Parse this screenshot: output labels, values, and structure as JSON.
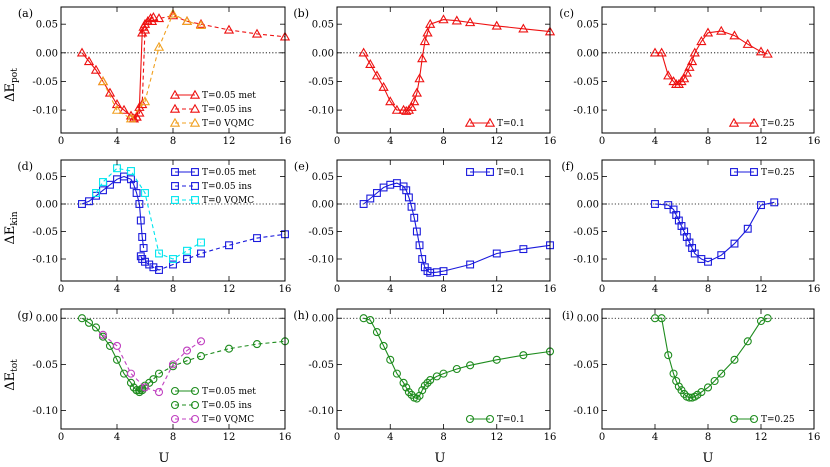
{
  "figure": {
    "xlabel": "U",
    "row_ylabels": [
      {
        "main": "ΔE",
        "sub": "pot"
      },
      {
        "main": "ΔE",
        "sub": "kin"
      },
      {
        "main": "ΔE",
        "sub": "tot"
      }
    ],
    "colors": {
      "red": "#ee1111",
      "orange": "#f0a020",
      "blue": "#1a1adc",
      "cyan": "#00e5ee",
      "green": "#1e8c1e",
      "magenta": "#c040c0"
    }
  },
  "chart_data": [
    {
      "type": "line",
      "label": "(a)",
      "quantity": "pot",
      "xlim": [
        0,
        16
      ],
      "ylim": [
        -0.14,
        0.08
      ],
      "xticks": [
        {
          "v": 0,
          "t": "0"
        },
        {
          "v": 4,
          "t": "4"
        },
        {
          "v": 8,
          "t": "8"
        },
        {
          "v": 12,
          "t": "12"
        },
        {
          "v": 16,
          "t": "16"
        }
      ],
      "yticks": [
        {
          "v": 0.05,
          "t": "0.05"
        },
        {
          "v": 0,
          "t": "0.00"
        },
        {
          "v": -0.05,
          "t": "-0.05"
        },
        {
          "v": -0.1,
          "t": "-0.10"
        }
      ],
      "legend_position": "bottom-right",
      "series": [
        {
          "name": "T=0.05 met",
          "color": "#ee1111",
          "marker": "triangle",
          "dash": false,
          "x": [
            1.5,
            2,
            2.5,
            3,
            3.5,
            4,
            4.5,
            5,
            5.2,
            5.4,
            5.6,
            5.8,
            5.9,
            6,
            6.2,
            6.4,
            6.6
          ],
          "y": [
            0,
            -0.015,
            -0.03,
            -0.05,
            -0.07,
            -0.09,
            -0.1,
            -0.11,
            -0.115,
            -0.112,
            -0.095,
            0.035,
            0.045,
            0.05,
            0.055,
            0.06,
            0.062
          ]
        },
        {
          "name": "T=0.05 ins",
          "color": "#ee1111",
          "marker": "triangle",
          "dash": true,
          "x": [
            5.2,
            5.4,
            5.6,
            5.8,
            6,
            6.5,
            7,
            8,
            9,
            10,
            12,
            14,
            16
          ],
          "y": [
            -0.115,
            -0.112,
            -0.105,
            -0.09,
            0.04,
            0.055,
            0.06,
            0.065,
            0.055,
            0.05,
            0.04,
            0.033,
            0.028
          ]
        },
        {
          "name": "T=0 VQMC",
          "color": "#f0a020",
          "marker": "triangle",
          "dash": true,
          "x": [
            3,
            4,
            5,
            6,
            7,
            8,
            9,
            10
          ],
          "y": [
            -0.05,
            -0.1,
            -0.115,
            -0.085,
            0.01,
            0.068,
            0.055,
            0.048
          ]
        }
      ]
    },
    {
      "type": "line",
      "label": "(b)",
      "quantity": "pot",
      "xlim": [
        0,
        16
      ],
      "ylim": [
        -0.14,
        0.08
      ],
      "xticks": [
        {
          "v": 0,
          "t": "0"
        },
        {
          "v": 4,
          "t": "4"
        },
        {
          "v": 8,
          "t": "8"
        },
        {
          "v": 12,
          "t": "12"
        },
        {
          "v": 16,
          "t": "16"
        }
      ],
      "yticks": [
        {
          "v": 0.05,
          "t": "0.05"
        },
        {
          "v": 0,
          "t": "0.00"
        },
        {
          "v": -0.05,
          "t": "-0.05"
        },
        {
          "v": -0.1,
          "t": "-0.10"
        }
      ],
      "legend_position": "bottom-right",
      "series": [
        {
          "name": "T=0.1",
          "color": "#ee1111",
          "marker": "triangle",
          "dash": false,
          "x": [
            2,
            2.5,
            3,
            3.5,
            4,
            4.5,
            5,
            5.2,
            5.4,
            5.6,
            5.8,
            6,
            6.2,
            6.4,
            6.6,
            6.8,
            7,
            8,
            9,
            10,
            12,
            14,
            16
          ],
          "y": [
            0,
            -0.02,
            -0.04,
            -0.06,
            -0.085,
            -0.1,
            -0.1,
            -0.102,
            -0.1,
            -0.095,
            -0.085,
            -0.07,
            -0.045,
            -0.01,
            0.02,
            0.035,
            0.05,
            0.058,
            0.056,
            0.053,
            0.047,
            0.042,
            0.037
          ]
        }
      ]
    },
    {
      "type": "line",
      "label": "(c)",
      "quantity": "pot",
      "xlim": [
        0,
        16
      ],
      "ylim": [
        -0.14,
        0.08
      ],
      "xticks": [
        {
          "v": 0,
          "t": "0"
        },
        {
          "v": 4,
          "t": "4"
        },
        {
          "v": 8,
          "t": "8"
        },
        {
          "v": 12,
          "t": "12"
        },
        {
          "v": 16,
          "t": "16"
        }
      ],
      "yticks": [
        {
          "v": 0.05,
          "t": "0.05"
        },
        {
          "v": 0,
          "t": "0.00"
        },
        {
          "v": -0.05,
          "t": "-0.05"
        },
        {
          "v": -0.1,
          "t": "-0.10"
        }
      ],
      "legend_position": "bottom-right",
      "series": [
        {
          "name": "T=0.25",
          "color": "#ee1111",
          "marker": "triangle",
          "dash": false,
          "x": [
            4,
            4.5,
            5,
            5.4,
            5.6,
            5.8,
            6,
            6.2,
            6.4,
            6.6,
            6.8,
            7,
            7.5,
            8,
            9,
            10,
            11,
            12,
            12.5
          ],
          "y": [
            0,
            0,
            -0.04,
            -0.05,
            -0.055,
            -0.055,
            -0.05,
            -0.045,
            -0.035,
            -0.025,
            -0.015,
            0,
            0.02,
            0.035,
            0.038,
            0.03,
            0.015,
            0.002,
            -0.002
          ]
        }
      ]
    },
    {
      "type": "line",
      "label": "(d)",
      "quantity": "kin",
      "xlim": [
        0,
        16
      ],
      "ylim": [
        -0.14,
        0.08
      ],
      "xticks": [
        {
          "v": 0,
          "t": "0"
        },
        {
          "v": 4,
          "t": "4"
        },
        {
          "v": 8,
          "t": "8"
        },
        {
          "v": 12,
          "t": "12"
        },
        {
          "v": 16,
          "t": "16"
        }
      ],
      "yticks": [
        {
          "v": 0.05,
          "t": "0.05"
        },
        {
          "v": 0,
          "t": "0.00"
        },
        {
          "v": -0.05,
          "t": "-0.05"
        },
        {
          "v": -0.1,
          "t": "-0.10"
        }
      ],
      "legend_position": "top-right",
      "series": [
        {
          "name": "T=0.05 met",
          "color": "#1a1adc",
          "marker": "square",
          "dash": false,
          "x": [
            1.5,
            2,
            2.5,
            3,
            3.5,
            4,
            4.5,
            5,
            5.2,
            5.4,
            5.6,
            5.7,
            5.8,
            5.9
          ],
          "y": [
            0,
            0.005,
            0.015,
            0.025,
            0.035,
            0.045,
            0.05,
            0.045,
            0.035,
            0.02,
            0,
            -0.03,
            -0.06,
            -0.08
          ]
        },
        {
          "name": "T=0.05 ins",
          "color": "#1a1adc",
          "marker": "square",
          "dash": true,
          "x": [
            5.7,
            5.8,
            6,
            6.3,
            6.6,
            7,
            8,
            9,
            10,
            12,
            14,
            16
          ],
          "y": [
            -0.095,
            -0.1,
            -0.105,
            -0.11,
            -0.115,
            -0.12,
            -0.11,
            -0.1,
            -0.09,
            -0.075,
            -0.062,
            -0.055
          ]
        },
        {
          "name": "T=0 VQMC",
          "color": "#00e5ee",
          "marker": "square",
          "dash": true,
          "x": [
            2.5,
            3,
            4,
            5,
            6,
            7,
            8,
            9,
            10
          ],
          "y": [
            0.02,
            0.04,
            0.065,
            0.06,
            0.02,
            -0.09,
            -0.1,
            -0.085,
            -0.07
          ]
        }
      ]
    },
    {
      "type": "line",
      "label": "(e)",
      "quantity": "kin",
      "xlim": [
        0,
        16
      ],
      "ylim": [
        -0.14,
        0.08
      ],
      "xticks": [
        {
          "v": 0,
          "t": "0"
        },
        {
          "v": 4,
          "t": "4"
        },
        {
          "v": 8,
          "t": "8"
        },
        {
          "v": 12,
          "t": "12"
        },
        {
          "v": 16,
          "t": "16"
        }
      ],
      "yticks": [
        {
          "v": 0.05,
          "t": "0.05"
        },
        {
          "v": 0,
          "t": "0.00"
        },
        {
          "v": -0.05,
          "t": "-0.05"
        },
        {
          "v": -0.1,
          "t": "-0.10"
        }
      ],
      "legend_position": "top-right",
      "series": [
        {
          "name": "T=0.1",
          "color": "#1a1adc",
          "marker": "square",
          "dash": false,
          "x": [
            2,
            2.5,
            3,
            3.5,
            4,
            4.5,
            5,
            5.2,
            5.4,
            5.6,
            5.8,
            6,
            6.2,
            6.4,
            6.6,
            6.8,
            7,
            7.5,
            8,
            10,
            12,
            14,
            16
          ],
          "y": [
            0,
            0.01,
            0.02,
            0.03,
            0.035,
            0.038,
            0.032,
            0.025,
            0.012,
            -0.005,
            -0.025,
            -0.05,
            -0.075,
            -0.1,
            -0.115,
            -0.122,
            -0.125,
            -0.124,
            -0.122,
            -0.11,
            -0.09,
            -0.082,
            -0.075
          ]
        }
      ]
    },
    {
      "type": "line",
      "label": "(f)",
      "quantity": "kin",
      "xlim": [
        0,
        16
      ],
      "ylim": [
        -0.14,
        0.08
      ],
      "xticks": [
        {
          "v": 0,
          "t": "0"
        },
        {
          "v": 4,
          "t": "4"
        },
        {
          "v": 8,
          "t": "8"
        },
        {
          "v": 12,
          "t": "12"
        },
        {
          "v": 16,
          "t": "16"
        }
      ],
      "yticks": [
        {
          "v": 0.05,
          "t": "0.05"
        },
        {
          "v": 0,
          "t": "0.00"
        },
        {
          "v": -0.05,
          "t": "-0.05"
        },
        {
          "v": -0.1,
          "t": "-0.10"
        }
      ],
      "legend_position": "top-right",
      "series": [
        {
          "name": "T=0.25",
          "color": "#1a1adc",
          "marker": "square",
          "dash": false,
          "x": [
            4,
            5,
            5.4,
            5.6,
            5.8,
            6,
            6.2,
            6.4,
            6.6,
            6.8,
            7,
            7.5,
            8,
            9,
            10,
            11,
            12,
            13
          ],
          "y": [
            0,
            -0.002,
            -0.01,
            -0.02,
            -0.03,
            -0.04,
            -0.05,
            -0.06,
            -0.07,
            -0.08,
            -0.09,
            -0.1,
            -0.105,
            -0.093,
            -0.072,
            -0.045,
            -0.002,
            0.003
          ]
        }
      ]
    },
    {
      "type": "line",
      "label": "(g)",
      "quantity": "tot",
      "xlim": [
        0,
        16
      ],
      "ylim": [
        -0.12,
        0.01
      ],
      "xticks": [
        {
          "v": 0,
          "t": "0"
        },
        {
          "v": 4,
          "t": "4"
        },
        {
          "v": 8,
          "t": "8"
        },
        {
          "v": 12,
          "t": "12"
        },
        {
          "v": 16,
          "t": "16"
        }
      ],
      "yticks": [
        {
          "v": 0,
          "t": "0.00"
        },
        {
          "v": -0.05,
          "t": "-0.05"
        },
        {
          "v": -0.1,
          "t": "-0.10"
        }
      ],
      "legend_position": "bottom-right",
      "series": [
        {
          "name": "T=0.05 met",
          "color": "#1e8c1e",
          "marker": "circle",
          "dash": false,
          "x": [
            1.5,
            2,
            2.5,
            3,
            3.5,
            4,
            4.5,
            5,
            5.2,
            5.4,
            5.6,
            5.8
          ],
          "y": [
            0,
            -0.005,
            -0.01,
            -0.02,
            -0.03,
            -0.045,
            -0.06,
            -0.07,
            -0.075,
            -0.078,
            -0.08,
            -0.078
          ]
        },
        {
          "name": "T=0.05 ins",
          "color": "#1e8c1e",
          "marker": "circle",
          "dash": true,
          "x": [
            5.4,
            5.6,
            5.8,
            6,
            6.3,
            6.6,
            7,
            8,
            9,
            10,
            12,
            14,
            16
          ],
          "y": [
            -0.078,
            -0.078,
            -0.076,
            -0.073,
            -0.07,
            -0.066,
            -0.06,
            -0.052,
            -0.046,
            -0.041,
            -0.033,
            -0.028,
            -0.025
          ]
        },
        {
          "name": "T=0 VQMC",
          "color": "#c040c0",
          "marker": "circle",
          "dash": true,
          "x": [
            3,
            4,
            5,
            6,
            7,
            8,
            9,
            10
          ],
          "y": [
            -0.018,
            -0.03,
            -0.06,
            -0.075,
            -0.08,
            -0.05,
            -0.035,
            -0.025
          ]
        }
      ]
    },
    {
      "type": "line",
      "label": "(h)",
      "quantity": "tot",
      "xlim": [
        0,
        16
      ],
      "ylim": [
        -0.12,
        0.01
      ],
      "xticks": [
        {
          "v": 0,
          "t": "0"
        },
        {
          "v": 4,
          "t": "4"
        },
        {
          "v": 8,
          "t": "8"
        },
        {
          "v": 12,
          "t": "12"
        },
        {
          "v": 16,
          "t": "16"
        }
      ],
      "yticks": [
        {
          "v": 0,
          "t": "0.00"
        },
        {
          "v": -0.05,
          "t": "-0.05"
        },
        {
          "v": -0.1,
          "t": "-0.10"
        }
      ],
      "legend_position": "bottom-right",
      "series": [
        {
          "name": "T=0.1",
          "color": "#1e8c1e",
          "marker": "circle",
          "dash": false,
          "x": [
            2,
            2.5,
            3,
            3.5,
            4,
            4.5,
            5,
            5.2,
            5.4,
            5.6,
            5.8,
            6,
            6.2,
            6.4,
            6.6,
            6.8,
            7,
            7.5,
            8,
            9,
            10,
            12,
            14,
            16
          ],
          "y": [
            0,
            -0.002,
            -0.015,
            -0.03,
            -0.045,
            -0.06,
            -0.07,
            -0.075,
            -0.08,
            -0.083,
            -0.086,
            -0.087,
            -0.084,
            -0.078,
            -0.073,
            -0.07,
            -0.067,
            -0.063,
            -0.06,
            -0.055,
            -0.051,
            -0.045,
            -0.04,
            -0.036
          ]
        }
      ]
    },
    {
      "type": "line",
      "label": "(i)",
      "quantity": "tot",
      "xlim": [
        0,
        16
      ],
      "ylim": [
        -0.12,
        0.01
      ],
      "xticks": [
        {
          "v": 0,
          "t": "0"
        },
        {
          "v": 4,
          "t": "4"
        },
        {
          "v": 8,
          "t": "8"
        },
        {
          "v": 12,
          "t": "12"
        },
        {
          "v": 16,
          "t": "16"
        }
      ],
      "yticks": [
        {
          "v": 0,
          "t": "0.00"
        },
        {
          "v": -0.05,
          "t": "-0.05"
        },
        {
          "v": -0.1,
          "t": "-0.10"
        }
      ],
      "legend_position": "bottom-right",
      "series": [
        {
          "name": "T=0.25",
          "color": "#1e8c1e",
          "marker": "circle",
          "dash": false,
          "x": [
            4,
            4.5,
            5,
            5.4,
            5.6,
            5.8,
            6,
            6.2,
            6.4,
            6.6,
            6.8,
            7,
            7.2,
            7.5,
            8,
            8.5,
            9,
            10,
            11,
            12,
            12.5
          ],
          "y": [
            0,
            0,
            -0.04,
            -0.06,
            -0.068,
            -0.074,
            -0.078,
            -0.082,
            -0.085,
            -0.086,
            -0.086,
            -0.085,
            -0.083,
            -0.08,
            -0.075,
            -0.068,
            -0.06,
            -0.045,
            -0.025,
            -0.003,
            0
          ]
        }
      ]
    }
  ]
}
